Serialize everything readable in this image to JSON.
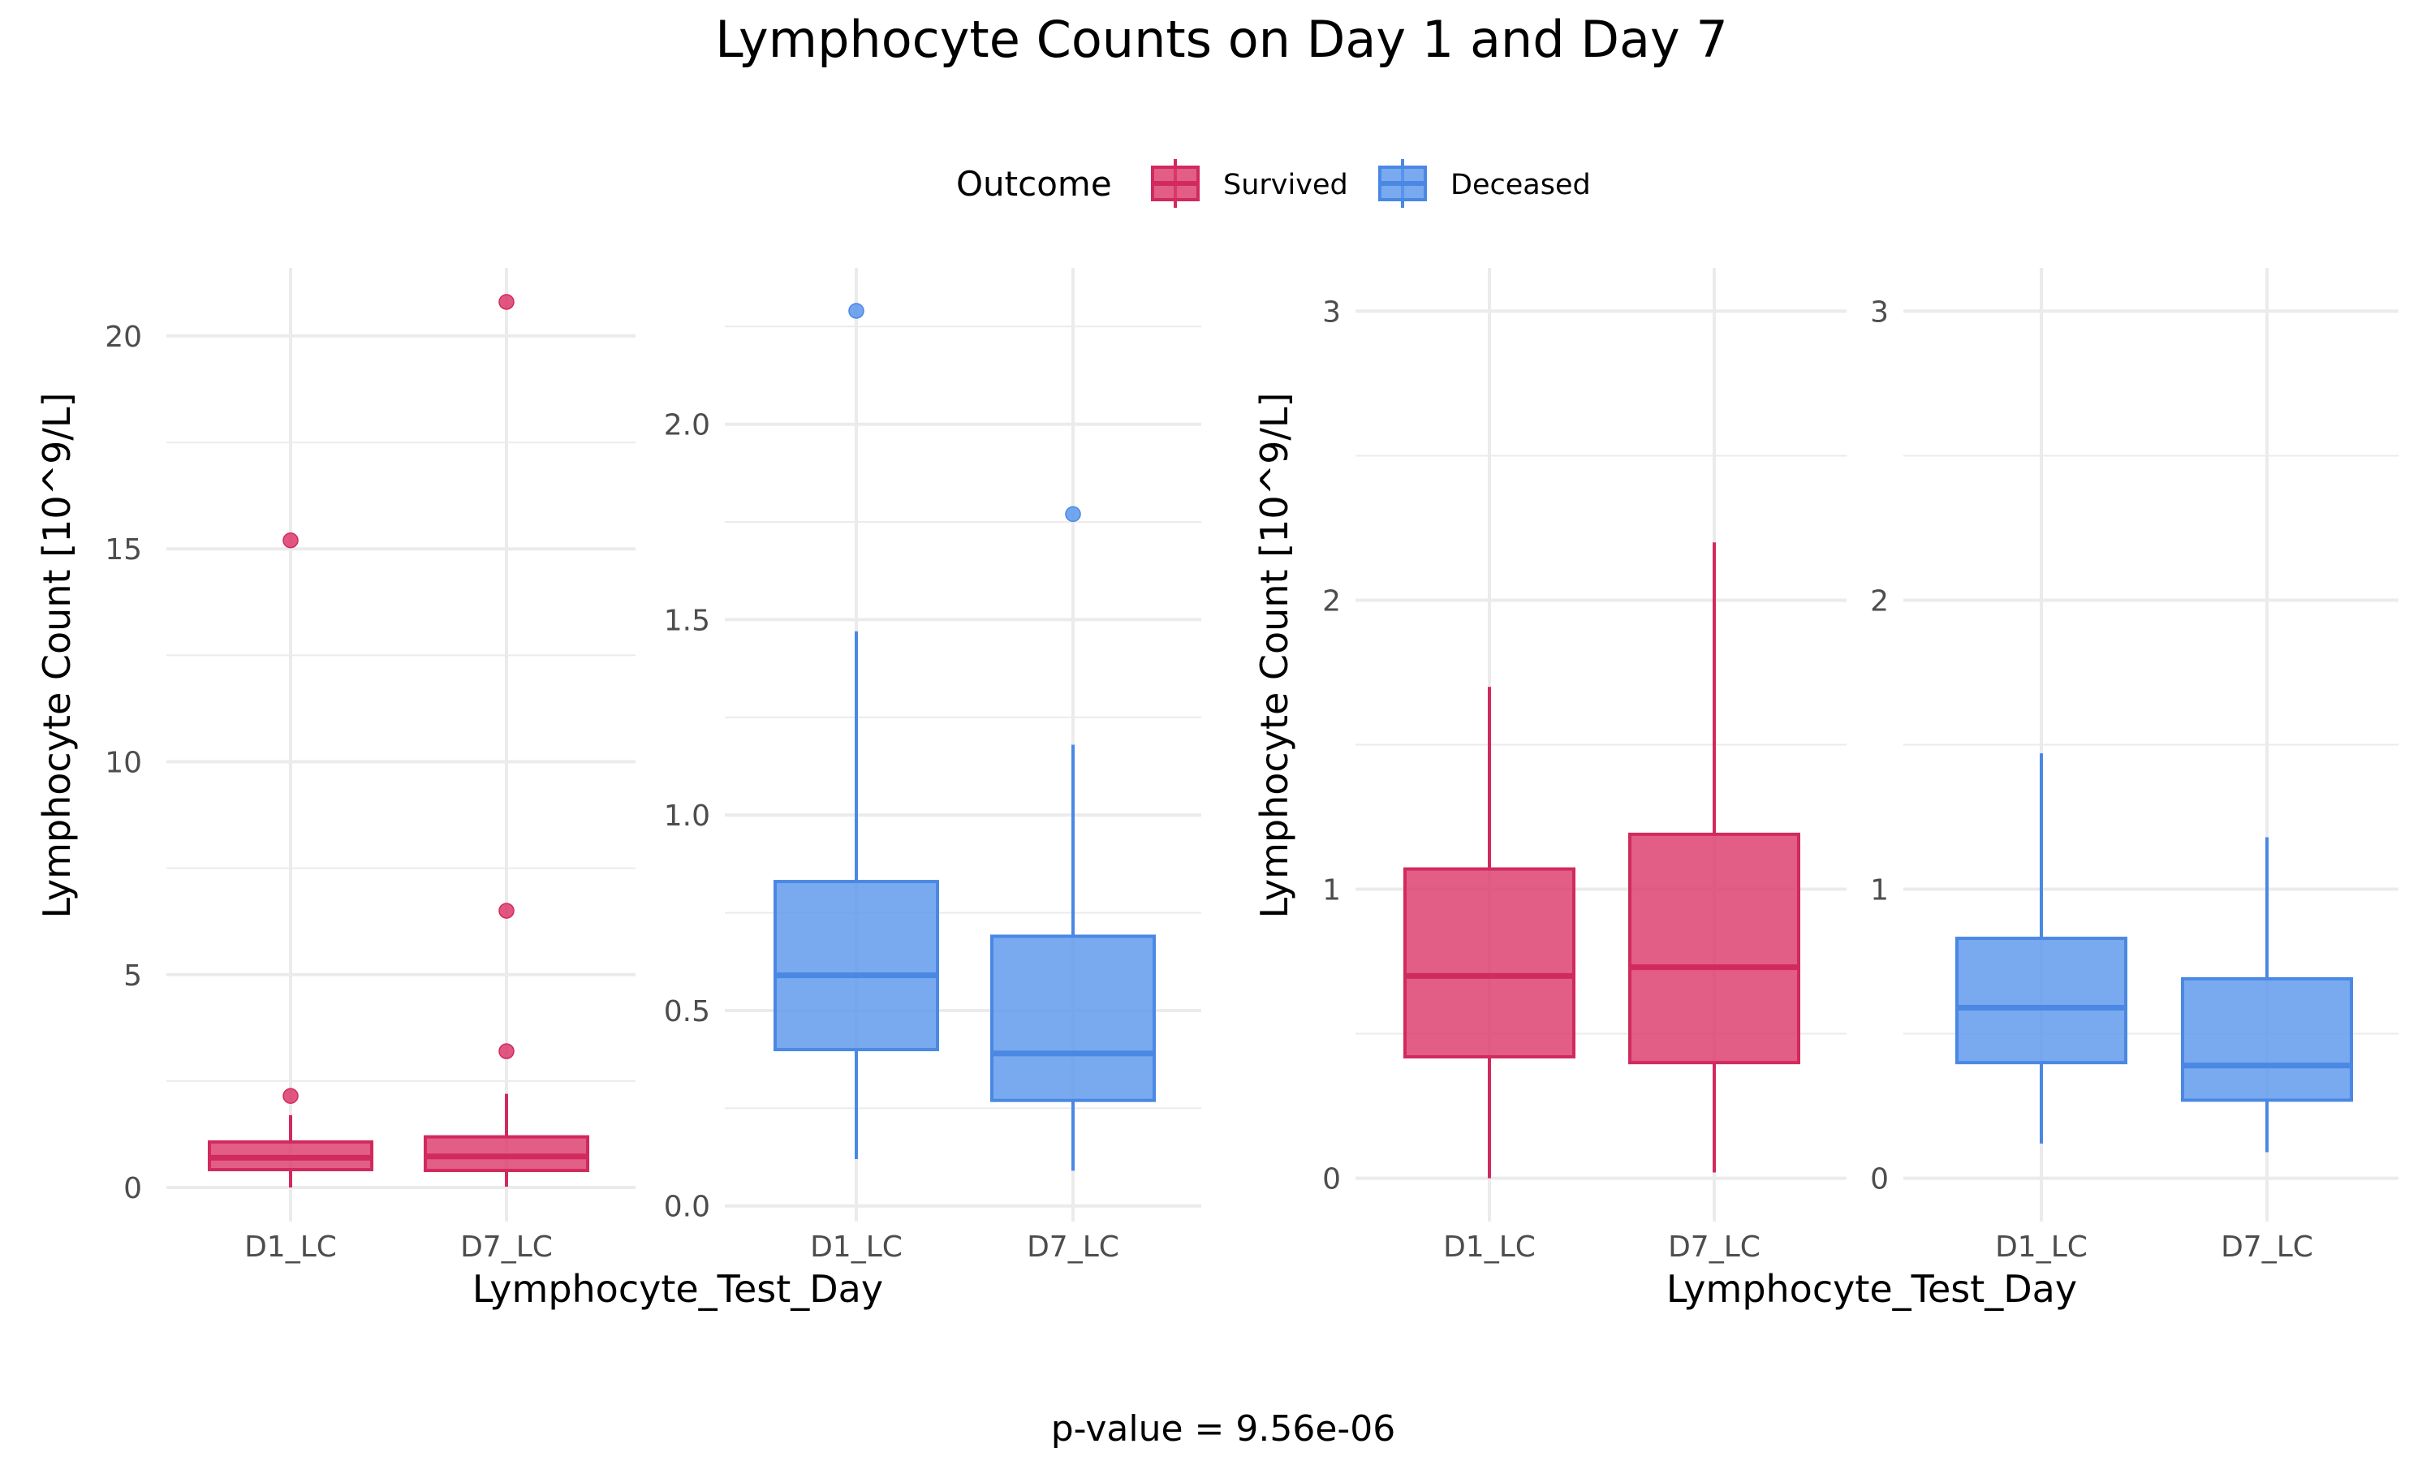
{
  "title": "Lymphocyte Counts on Day 1 and Day 7",
  "footer": "p-value = 9.56e-06",
  "legend": {
    "title": "Outcome",
    "entries": [
      {
        "label": "Survived",
        "fill": "#DC3A6B",
        "stroke": "#D12A5E"
      },
      {
        "label": "Deceased",
        "fill": "#5B97EC",
        "stroke": "#4A88E4"
      }
    ]
  },
  "colors": {
    "survived_fill": "#DC3A6B",
    "survived_line": "#D12A5E",
    "deceased_fill": "#5B97EC",
    "deceased_line": "#4A88E4",
    "grid": "#EBEBEB",
    "tick_text": "#4D4D4D"
  },
  "chart_data": [
    {
      "type": "box",
      "group": "Survived",
      "ylabel": "Lymphocyte Count [10^9/L]",
      "ylim": [
        -0.8,
        21.6
      ],
      "yticks": [
        0,
        5,
        10,
        15,
        20
      ],
      "yticklabels": [
        "0",
        "5",
        "10",
        "15",
        "20"
      ],
      "yminor": [
        2.5,
        7.5,
        12.5,
        17.5
      ],
      "categories": [
        "D1_LC",
        "D7_LC"
      ],
      "boxes": [
        {
          "category": "D1_LC",
          "whisker_low": 0.0,
          "q1": 0.42,
          "median": 0.7,
          "q3": 1.07,
          "whisker_high": 1.7,
          "outliers": [
            2.15,
            15.2
          ]
        },
        {
          "category": "D7_LC",
          "whisker_low": 0.02,
          "q1": 0.4,
          "median": 0.73,
          "q3": 1.19,
          "whisker_high": 2.2,
          "outliers": [
            3.2,
            6.5,
            20.8
          ]
        }
      ]
    },
    {
      "type": "box",
      "group": "Deceased",
      "ylim": [
        -0.04,
        2.4
      ],
      "yticks": [
        0.0,
        0.5,
        1.0,
        1.5,
        2.0
      ],
      "yticklabels": [
        "0.0",
        "0.5",
        "1.0",
        "1.5",
        "2.0"
      ],
      "yminor": [
        0.25,
        0.75,
        1.25,
        1.75,
        2.25
      ],
      "categories": [
        "D1_LC",
        "D7_LC"
      ],
      "boxes": [
        {
          "category": "D1_LC",
          "whisker_low": 0.12,
          "q1": 0.4,
          "median": 0.59,
          "q3": 0.83,
          "whisker_high": 1.47,
          "outliers": [
            2.29
          ]
        },
        {
          "category": "D7_LC",
          "whisker_low": 0.09,
          "q1": 0.27,
          "median": 0.39,
          "q3": 0.69,
          "whisker_high": 1.18,
          "outliers": [
            1.77
          ]
        }
      ]
    },
    {
      "type": "box",
      "group": "Survived",
      "ylabel": "Lymphocyte Count [10^9/L]",
      "ylim": [
        -0.15,
        3.15
      ],
      "yticks": [
        0,
        1,
        2,
        3
      ],
      "yticklabels": [
        "0",
        "1",
        "2",
        "3"
      ],
      "yminor": [
        0.5,
        1.5,
        2.5
      ],
      "categories": [
        "D1_LC",
        "D7_LC"
      ],
      "boxes": [
        {
          "category": "D1_LC",
          "whisker_low": 0.0,
          "q1": 0.42,
          "median": 0.7,
          "q3": 1.07,
          "whisker_high": 1.7,
          "outliers": []
        },
        {
          "category": "D7_LC",
          "whisker_low": 0.02,
          "q1": 0.4,
          "median": 0.73,
          "q3": 1.19,
          "whisker_high": 2.2,
          "outliers": []
        }
      ]
    },
    {
      "type": "box",
      "group": "Deceased",
      "ylim": [
        -0.15,
        3.15
      ],
      "yticks": [
        0,
        1,
        2,
        3
      ],
      "yticklabels": [
        "0",
        "1",
        "2",
        "3"
      ],
      "yminor": [
        0.5,
        1.5,
        2.5
      ],
      "categories": [
        "D1_LC",
        "D7_LC"
      ],
      "boxes": [
        {
          "category": "D1_LC",
          "whisker_low": 0.12,
          "q1": 0.4,
          "median": 0.59,
          "q3": 0.83,
          "whisker_high": 1.47,
          "outliers": []
        },
        {
          "category": "D7_LC",
          "whisker_low": 0.09,
          "q1": 0.27,
          "median": 0.39,
          "q3": 0.69,
          "whisker_high": 1.18,
          "outliers": []
        }
      ]
    }
  ],
  "xlabels": [
    "Lymphocyte_Test_Day",
    "Lymphocyte_Test_Day"
  ]
}
